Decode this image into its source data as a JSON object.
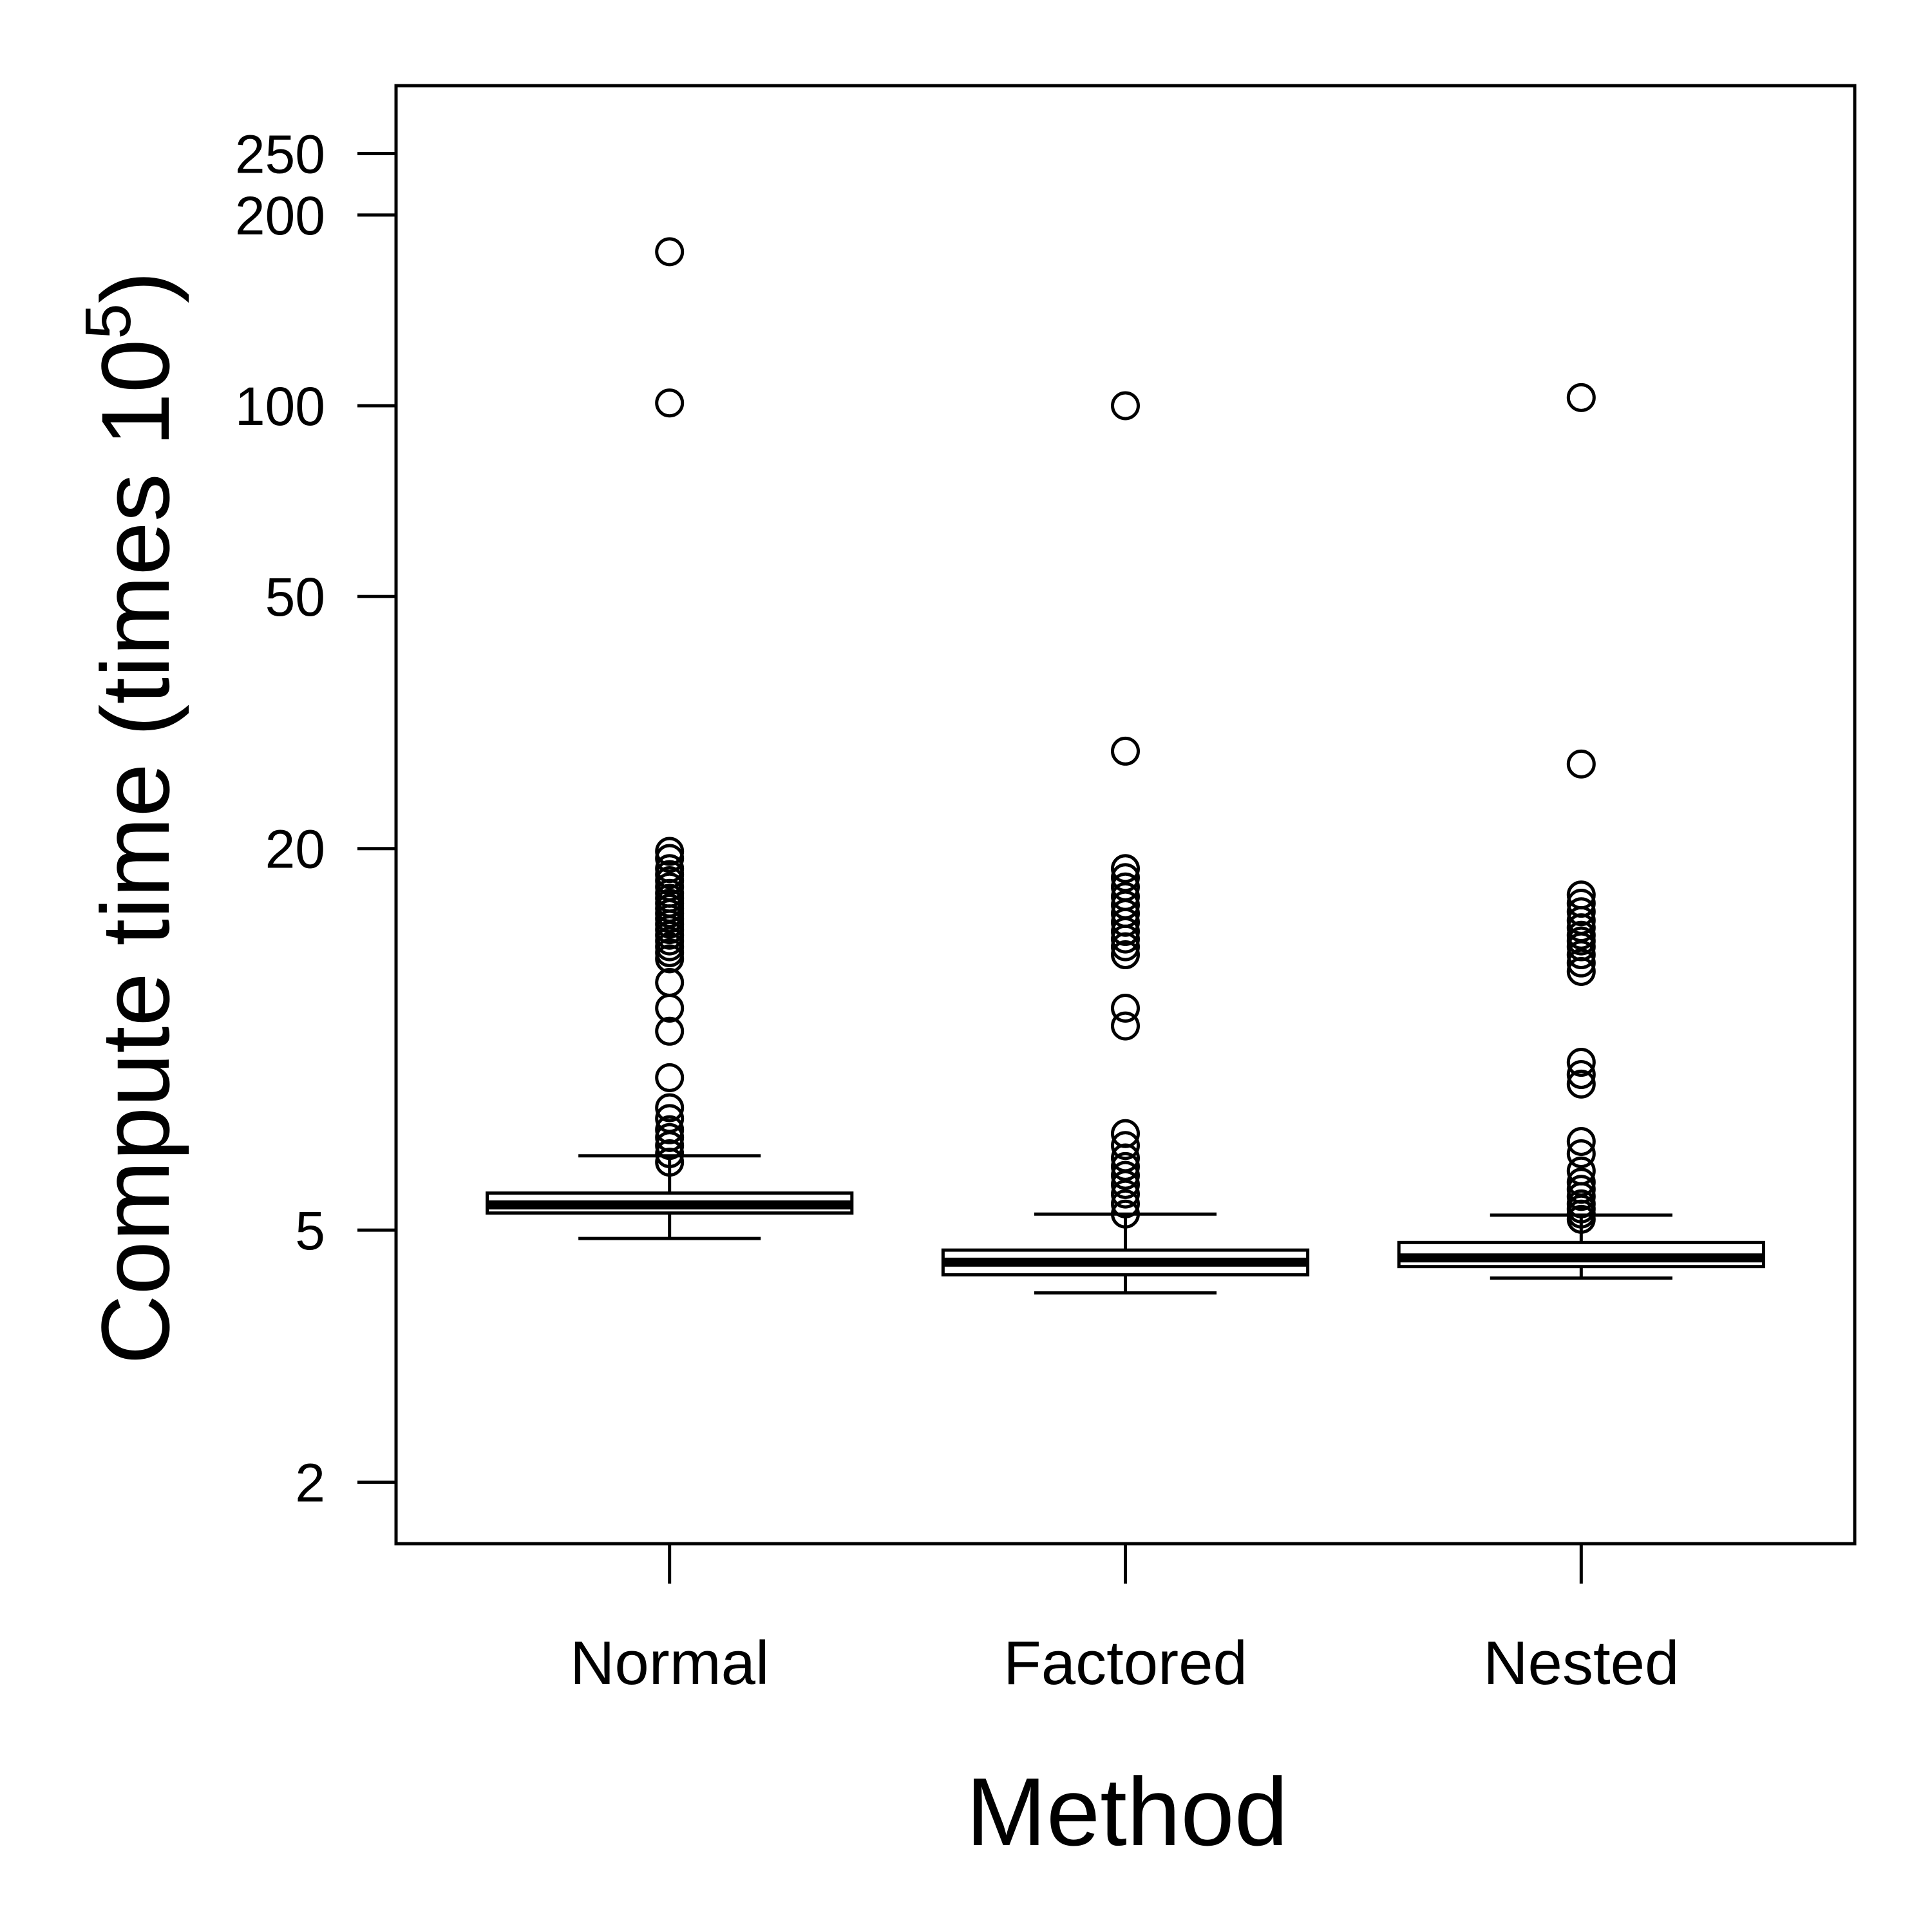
{
  "chart_data": {
    "type": "boxplot",
    "title": "",
    "xlabel": "Method",
    "ylabel_main": "Compute time (times 10",
    "ylabel_sup": "5",
    "ylabel_close": ")",
    "yscale": "log",
    "ylim": [
      1.6,
      320
    ],
    "yticks": [
      2,
      5,
      20,
      50,
      100,
      200,
      250
    ],
    "ytick_labels": [
      "2",
      "5",
      "20",
      "50",
      "100",
      "200",
      "250"
    ],
    "categories": [
      "Normal",
      "Factored",
      "Nested"
    ],
    "series": [
      {
        "name": "Normal",
        "whisker_low": 4.85,
        "q1": 5.32,
        "median": 5.48,
        "q3": 5.72,
        "whisker_high": 6.55,
        "outliers": [
          175,
          101,
          19.8,
          19.3,
          18.6,
          18.2,
          17.8,
          17.4,
          17.0,
          16.7,
          16.4,
          16.1,
          15.8,
          15.5,
          15.2,
          14.9,
          14.6,
          14.3,
          14.0,
          13.7,
          13.4,
          12.3,
          11.2,
          10.3,
          8.7,
          7.8,
          7.5,
          7.2,
          7.0,
          6.8,
          6.6,
          6.4
        ]
      },
      {
        "name": "Factored",
        "whisker_low": 3.98,
        "q1": 4.25,
        "median": 4.45,
        "q3": 4.65,
        "whisker_high": 5.3,
        "outliers": [
          100,
          28.5,
          18.6,
          18.0,
          17.4,
          16.8,
          16.3,
          15.8,
          15.3,
          14.8,
          14.4,
          14.0,
          13.6,
          11.2,
          10.5,
          7.1,
          6.8,
          6.5,
          6.3,
          6.1,
          5.9,
          5.7,
          5.5,
          5.3
        ]
      },
      {
        "name": "Nested",
        "whisker_low": 4.2,
        "q1": 4.38,
        "median": 4.52,
        "q3": 4.78,
        "whisker_high": 5.28,
        "outliers": [
          103,
          27.2,
          16.9,
          16.4,
          15.9,
          15.4,
          15.0,
          14.6,
          14.3,
          14.0,
          13.6,
          13.2,
          12.8,
          9.2,
          8.8,
          8.5,
          6.9,
          6.6,
          6.2,
          5.95,
          5.8,
          5.65,
          5.5,
          5.4,
          5.3,
          5.2
        ]
      }
    ]
  }
}
